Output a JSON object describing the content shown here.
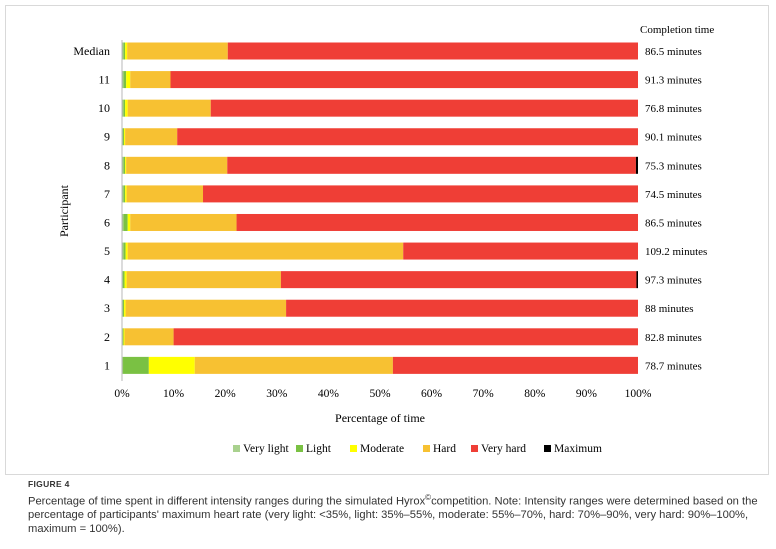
{
  "chart_data": {
    "type": "bar",
    "stacked": true,
    "orientation": "horizontal",
    "xlabel": "Percentage of time",
    "ylabel": "Participant",
    "xlim": [
      0,
      100
    ],
    "x_ticks": [
      "0%",
      "10%",
      "20%",
      "30%",
      "40%",
      "50%",
      "60%",
      "70%",
      "80%",
      "90%",
      "100%"
    ],
    "grid": false,
    "legend_position": "bottom",
    "right_column_header": "Completion time",
    "categories": [
      "Median",
      "11",
      "10",
      "9",
      "8",
      "7",
      "6",
      "5",
      "4",
      "3",
      "2",
      "1"
    ],
    "completion_times": [
      "86.5 minutes",
      "91.3 minutes",
      "76.8 minutes",
      "90.1 minutes",
      "75.3 minutes",
      "74.5 minutes",
      "86.5 minutes",
      "109.2 minutes",
      "97.3 minutes",
      "88 minutes",
      "82.8 minutes",
      "78.7 minutes"
    ],
    "series": [
      {
        "name": "Very light",
        "color": "#a9d18e",
        "values": [
          0.3,
          0.3,
          0.3,
          0.2,
          0.3,
          0.3,
          0.3,
          0.3,
          0.2,
          0.2,
          0.2,
          0.2
        ]
      },
      {
        "name": "Light",
        "color": "#7ac143",
        "values": [
          0.3,
          0.5,
          0.3,
          0.2,
          0.3,
          0.3,
          0.8,
          0.4,
          0.3,
          0.2,
          0.1,
          5.0
        ]
      },
      {
        "name": "Moderate",
        "color": "#ffff00",
        "values": [
          0.4,
          0.8,
          0.5,
          0.2,
          0.2,
          0.3,
          0.5,
          0.4,
          0.4,
          0.3,
          0.2,
          8.9
        ]
      },
      {
        "name": "Hard",
        "color": "#f7c132",
        "values": [
          19.5,
          7.8,
          16.1,
          10.1,
          19.6,
          14.8,
          20.6,
          53.4,
          29.9,
          31.1,
          9.5,
          38.4
        ]
      },
      {
        "name": "Very hard",
        "color": "#ef3e36",
        "values": [
          79.5,
          90.6,
          82.8,
          89.3,
          79.2,
          84.3,
          77.8,
          45.5,
          68.9,
          68.2,
          90.0,
          47.5
        ]
      },
      {
        "name": "Maximum",
        "color": "#000000",
        "values": [
          0.0,
          0.0,
          0.0,
          0.0,
          0.4,
          0.0,
          0.0,
          0.0,
          0.3,
          0.0,
          0.0,
          0.0
        ]
      }
    ]
  },
  "caption": {
    "label": "FIGURE 4",
    "text_before_symbol": "Percentage of time spent in different intensity ranges during the simulated Hyrox",
    "symbol": "©",
    "text_after_symbol": "competition. Note: Intensity ranges were determined based on the percentage of participants' maximum heart rate (very light: <35%, light: 35%–55%, moderate: 55%–70%, hard: 70%–90%, very hard: 90%–100%, maximum = 100%)."
  }
}
